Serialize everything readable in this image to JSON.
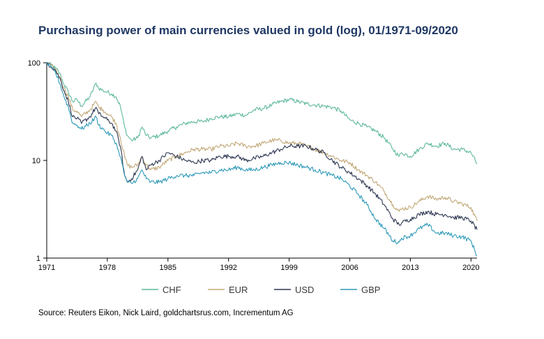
{
  "chart_data": {
    "type": "line",
    "title": "Purchasing power of main currencies valued in gold (log), 01/1971-09/2020",
    "xlabel": "",
    "ylabel": "",
    "y_scale": "log",
    "ylim": [
      1,
      100
    ],
    "xlim": [
      1971.0,
      2020.7
    ],
    "y_ticks": [
      1,
      10,
      100
    ],
    "y_tick_labels": [
      "1",
      "10",
      "100"
    ],
    "x_ticks": [
      1971,
      1978,
      1985,
      1992,
      1999,
      2006,
      2013,
      2020
    ],
    "x_tick_labels": [
      "1971",
      "1978",
      "1985",
      "1992",
      "1999",
      "2006",
      "2013",
      "2020"
    ],
    "grid": false,
    "legend_position": "bottom",
    "series": [
      {
        "name": "CHF",
        "color": "#5fb89f",
        "x": [
          1971,
          1971.5,
          1972,
          1972.5,
          1973,
          1973.5,
          1974,
          1974.5,
          1975,
          1976,
          1976.7,
          1977,
          1977.5,
          1978,
          1978.5,
          1979,
          1979.5,
          1980,
          1980.3,
          1980.8,
          1981.5,
          1982,
          1982.5,
          1983,
          1984,
          1985,
          1986,
          1987,
          1988,
          1989,
          1990,
          1991,
          1992,
          1993,
          1994,
          1995,
          1996,
          1997,
          1998,
          1999,
          2000,
          2001,
          2002,
          2003,
          2004,
          2005,
          2006,
          2007,
          2008,
          2009,
          2010,
          2011,
          2011.7,
          2012,
          2013,
          2014,
          2015,
          2016,
          2017,
          2018,
          2019,
          2020,
          2020.7
        ],
        "values": [
          100,
          95,
          88,
          78,
          60,
          50,
          40,
          42,
          36,
          45,
          62,
          55,
          52,
          50,
          48,
          45,
          36,
          22,
          18,
          16,
          17,
          22,
          18,
          17,
          18,
          20,
          22,
          24,
          25,
          25,
          27,
          28,
          28,
          30,
          29,
          33,
          34,
          37,
          40,
          42,
          40,
          38,
          37,
          36,
          35,
          32,
          26,
          24,
          22,
          20,
          17,
          13,
          11,
          12,
          11,
          13,
          15,
          14,
          15,
          13,
          13,
          12,
          9.2
        ]
      },
      {
        "name": "EUR",
        "color": "#c2a878",
        "x": [
          1971,
          1971.5,
          1972,
          1972.5,
          1973,
          1973.5,
          1974,
          1974.5,
          1975,
          1976,
          1976.7,
          1977,
          1977.5,
          1978,
          1978.5,
          1979,
          1979.5,
          1980,
          1980.3,
          1980.8,
          1981.5,
          1982,
          1982.5,
          1983,
          1984,
          1985,
          1986,
          1987,
          1988,
          1989,
          1990,
          1991,
          1992,
          1993,
          1994,
          1995,
          1996,
          1997,
          1998,
          1999,
          2000,
          2001,
          2002,
          2003,
          2004,
          2005,
          2006,
          2007,
          2008,
          2009,
          2010,
          2011,
          2011.7,
          2012,
          2013,
          2014,
          2015,
          2016,
          2017,
          2018,
          2019,
          2020,
          2020.7
        ],
        "values": [
          100,
          94,
          86,
          72,
          55,
          45,
          33,
          32,
          28,
          33,
          40,
          35,
          33,
          30,
          28,
          24,
          17,
          11,
          9,
          8.5,
          9,
          11,
          9,
          8,
          8.5,
          10,
          11,
          12,
          13,
          13,
          13,
          14,
          14,
          15,
          14,
          14,
          15,
          16,
          16,
          15,
          15,
          14,
          13,
          12,
          11,
          10,
          9.5,
          8,
          7,
          6,
          4.8,
          3.5,
          3.0,
          3.2,
          3.3,
          3.8,
          4.3,
          4.0,
          4.2,
          3.8,
          3.6,
          3.3,
          2.4
        ]
      },
      {
        "name": "USD",
        "color": "#2c3651",
        "x": [
          1971,
          1971.5,
          1972,
          1972.5,
          1973,
          1973.5,
          1974,
          1974.5,
          1975,
          1976,
          1976.7,
          1977,
          1977.5,
          1978,
          1978.5,
          1979,
          1979.5,
          1980,
          1980.3,
          1980.8,
          1981.5,
          1982,
          1982.5,
          1983,
          1984,
          1985,
          1986,
          1987,
          1988,
          1989,
          1990,
          1991,
          1992,
          1993,
          1994,
          1995,
          1996,
          1997,
          1998,
          1999,
          2000,
          2001,
          2002,
          2003,
          2004,
          2005,
          2006,
          2007,
          2008,
          2009,
          2010,
          2011,
          2011.7,
          2012,
          2013,
          2014,
          2015,
          2016,
          2017,
          2018,
          2019,
          2020,
          2020.7
        ],
        "values": [
          100,
          92,
          84,
          70,
          52,
          40,
          28,
          27,
          24,
          28,
          35,
          30,
          28,
          26,
          24,
          20,
          14,
          7,
          6,
          6.5,
          8,
          11,
          8,
          9,
          10,
          12,
          11,
          10,
          9.5,
          10,
          10,
          11,
          11,
          11,
          10,
          10.5,
          11,
          12,
          13,
          14,
          14,
          14,
          13,
          12,
          10,
          8.5,
          7.5,
          6.5,
          5.5,
          4.5,
          3.5,
          2.5,
          2.2,
          2.3,
          2.5,
          2.8,
          3.0,
          2.8,
          2.8,
          2.6,
          2.6,
          2.4,
          1.95
        ]
      },
      {
        "name": "GBP",
        "color": "#2f9ab8",
        "x": [
          1971,
          1971.5,
          1972,
          1972.5,
          1973,
          1973.5,
          1974,
          1974.5,
          1975,
          1976,
          1976.7,
          1977,
          1977.5,
          1978,
          1978.5,
          1979,
          1979.5,
          1980,
          1980.3,
          1980.8,
          1981.5,
          1982,
          1982.5,
          1983,
          1984,
          1985,
          1986,
          1987,
          1988,
          1989,
          1990,
          1991,
          1992,
          1993,
          1994,
          1995,
          1996,
          1997,
          1998,
          1999,
          2000,
          2001,
          2002,
          2003,
          2004,
          2005,
          2006,
          2007,
          2008,
          2009,
          2010,
          2011,
          2011.7,
          2012,
          2013,
          2014,
          2015,
          2016,
          2017,
          2018,
          2019,
          2020,
          2020.7
        ],
        "values": [
          100,
          90,
          80,
          62,
          45,
          35,
          24,
          23,
          21,
          24,
          28,
          23,
          21,
          19,
          18,
          15,
          11,
          7,
          6,
          5.8,
          6.5,
          8,
          6.5,
          6,
          6,
          6.5,
          7,
          7,
          7,
          7.5,
          7.5,
          8,
          8,
          8.5,
          8,
          8,
          8.5,
          9,
          9.5,
          9.5,
          9,
          8.5,
          8,
          7.5,
          7,
          6.5,
          5.5,
          4.5,
          3.5,
          2.5,
          2.0,
          1.5,
          1.45,
          1.6,
          1.7,
          2.0,
          2.2,
          1.8,
          1.8,
          1.7,
          1.65,
          1.5,
          1.05
        ]
      }
    ],
    "source": "Source: Reuters Eikon, Nick Laird, goldchartsrus.com, Incrementum AG"
  }
}
